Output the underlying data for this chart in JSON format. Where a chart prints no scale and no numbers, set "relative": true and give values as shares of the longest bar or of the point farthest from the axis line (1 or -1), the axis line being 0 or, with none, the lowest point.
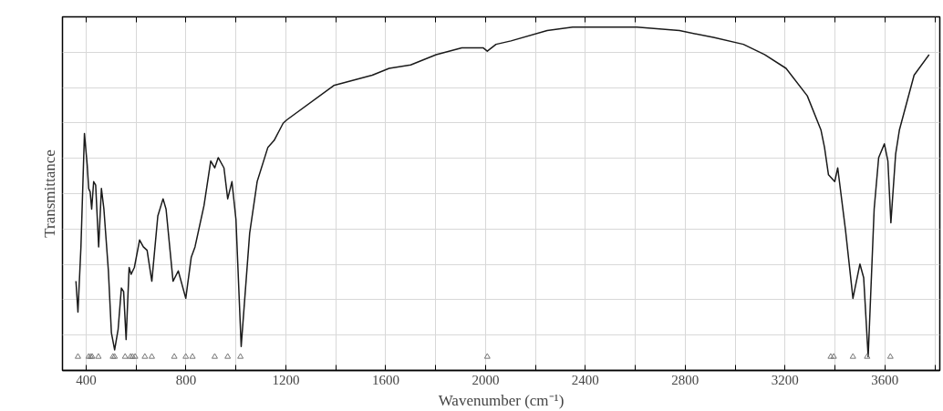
{
  "chart_data": {
    "type": "line",
    "xlabel": "Wavenumber (cm⁻¹)",
    "ylabel": "Transmittance",
    "relative": true,
    "grid": true,
    "marker": "none",
    "line_style": "solid",
    "xlim": [
      305,
      3820
    ],
    "xticks": [
      400,
      {
        "value": 600,
        "label": null
      },
      800,
      {
        "value": 1000,
        "label": null
      },
      1200,
      {
        "value": 1400,
        "label": null
      },
      1600,
      {
        "value": 1800,
        "label": null
      },
      2000,
      {
        "value": 2200,
        "label": null
      },
      2400,
      {
        "value": 2600,
        "label": null
      },
      2800,
      {
        "value": 3000,
        "label": null
      },
      3200,
      {
        "value": 3400,
        "label": null
      },
      3600,
      {
        "value": 3800,
        "label": null
      }
    ],
    "series": [
      {
        "color": "#1a1a1a",
        "x": [
          359,
          367,
          379,
          393,
          404,
          410,
          416,
          422,
          430,
          438,
          450,
          461,
          471,
          489,
          501,
          514,
          528,
          541,
          550,
          560,
          572,
          580,
          593,
          614,
          629,
          644,
          663,
          687,
          708,
          720,
          748,
          769,
          799,
          821,
          836,
          872,
          899,
          915,
          929,
          952,
          967,
          984,
          1000,
          1021,
          1055,
          1085,
          1128,
          1153,
          1189,
          1204,
          1392,
          1546,
          1614,
          1700,
          1802,
          1905,
          1990,
          2007,
          2042,
          2102,
          2247,
          2349,
          2606,
          2777,
          2913,
          3033,
          3118,
          3204,
          3289,
          3344,
          3358,
          3374,
          3399,
          3411,
          3442,
          3472,
          3500,
          3515,
          3533,
          3557,
          3575,
          3598,
          3612,
          3624,
          3643,
          3658,
          3717,
          3777
        ],
        "values": [
          0.26,
          0.17,
          0.36,
          0.69,
          0.6,
          0.53,
          0.52,
          0.47,
          0.55,
          0.54,
          0.36,
          0.53,
          0.47,
          0.29,
          0.11,
          0.06,
          0.12,
          0.24,
          0.23,
          0.09,
          0.3,
          0.28,
          0.3,
          0.38,
          0.36,
          0.35,
          0.26,
          0.45,
          0.5,
          0.47,
          0.26,
          0.29,
          0.21,
          0.33,
          0.36,
          0.48,
          0.61,
          0.59,
          0.62,
          0.59,
          0.5,
          0.55,
          0.44,
          0.07,
          0.4,
          0.55,
          0.65,
          0.67,
          0.72,
          0.73,
          0.83,
          0.86,
          0.88,
          0.89,
          0.92,
          0.94,
          0.94,
          0.93,
          0.95,
          0.96,
          0.99,
          1.0,
          1.0,
          0.99,
          0.97,
          0.95,
          0.92,
          0.88,
          0.8,
          0.7,
          0.65,
          0.57,
          0.55,
          0.59,
          0.41,
          0.21,
          0.31,
          0.27,
          0.04,
          0.47,
          0.62,
          0.66,
          0.61,
          0.43,
          0.63,
          0.7,
          0.86,
          0.92
        ]
      },
      {
        "type": "scatter",
        "marker": "triangle",
        "color": "#777777",
        "x": [
          367,
          410,
          418,
          424,
          449,
          507,
          514,
          556,
          578,
          586,
          596,
          635,
          663,
          753,
          799,
          826,
          915,
          967,
          1018,
          2007,
          3383,
          3395,
          3472,
          3529,
          3622
        ],
        "values": [
          0.04,
          0.04,
          0.04,
          0.04,
          0.04,
          0.04,
          0.04,
          0.04,
          0.04,
          0.04,
          0.04,
          0.04,
          0.04,
          0.04,
          0.04,
          0.04,
          0.04,
          0.04,
          0.04,
          0.04,
          0.04,
          0.04,
          0.04,
          0.04,
          0.04
        ]
      }
    ]
  }
}
